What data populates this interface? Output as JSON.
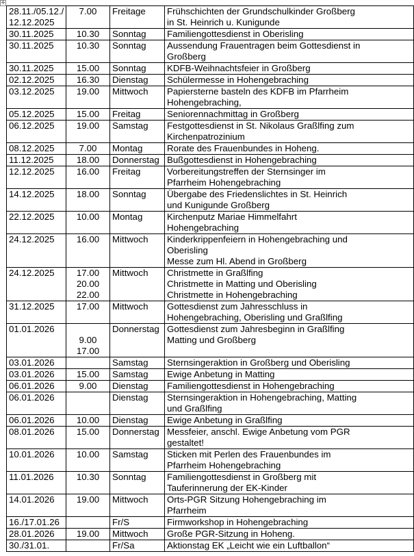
{
  "table_handle_icon": "move-handle-icon",
  "rows": [
    {
      "date": "28.11./05.12./\n12.12.2025",
      "time": "7.00",
      "day": "Freitage",
      "desc": "Frühschichten der Grundschulkinder Großberg\nin St. Heinrich u. Kunigunde"
    },
    {
      "date": "30.11.2025",
      "time": "10.30",
      "day": "Sonntag",
      "desc": "Familiengottesdienst in Oberisling"
    },
    {
      "date": "30.11.2025",
      "time": "10.30",
      "day": "Sonntag",
      "desc": "Aussendung Frauentragen beim Gottesdienst in\nGroßberg"
    },
    {
      "date": "30.11.2025",
      "time": "15.00",
      "day": "Sonntag",
      "desc": "KDFB-Weihnachtsfeier in Großberg"
    },
    {
      "date": "02.12.2025",
      "time": "16.30",
      "day": "Dienstag",
      "desc": "Schülermesse in Hohengebraching"
    },
    {
      "date": "03.12.2025",
      "time": "19.00",
      "day": "Mittwoch",
      "desc": "Papiersterne basteln des KDFB im Pfarrheim\nHohengebraching,"
    },
    {
      "date": "05.12.2025",
      "time": "15.00",
      "day": "Freitag",
      "desc": "Seniorennachmittag in Großberg"
    },
    {
      "date": "06.12.2025",
      "time": "19.00",
      "day": "Samstag",
      "desc": "Festgottesdienst in St. Nikolaus Graßlfing zum\nKirchenpatrozinium"
    },
    {
      "date": "08.12.2025",
      "time": "7.00",
      "day": "Montag",
      "desc": "Rorate des Frauenbundes in Hoheng."
    },
    {
      "date": "11.12.2025",
      "time": "18.00",
      "day": "Donnerstag",
      "desc": "Bußgottesdienst in Hohengebraching"
    },
    {
      "date": "12.12.2025",
      "time": "16.00",
      "day": "Freitag",
      "desc": "Vorbereitungstreffen der Sternsinger im\nPfarrheim Hohengebraching"
    },
    {
      "date": "14.12.2025",
      "time": "18.00",
      "day": "Sonntag",
      "desc": "Übergabe des Friedenslichtes in St. Heinrich\nund Kunigunde Großberg"
    },
    {
      "date": "22.12.2025",
      "time": "10.00",
      "day": "Montag",
      "desc": "Kirchenputz Mariae Himmelfahrt\nHohengebraching"
    },
    {
      "date": "24.12.2025",
      "time": "16.00",
      "day": "Mittwoch",
      "desc": "Kinderkrippenfeiern in Hohengebraching und\nOberisling\nMesse zum Hl. Abend in Großberg"
    },
    {
      "date": "24.12.2025",
      "time": "17.00\n20.00\n22.00",
      "day": "Mittwoch",
      "desc": "Christmette in Graßlfing\nChristmette in Matting und Oberisling\nChristmette in Hohengebraching"
    },
    {
      "date": "31.12.2025",
      "time": "17.00",
      "day": "Mittwoch",
      "desc": "Gottesdienst zum Jahresschluss in\nHohengebraching, Oberisling und Graßlfing"
    },
    {
      "date": "01.01.2026",
      "time": "\n9.00\n17.00",
      "day": "Donnerstag",
      "desc": "Gottesdienst zum Jahresbeginn in Graßlfing\nMatting und Großberg"
    },
    {
      "date": "03.01.2026",
      "time": "",
      "day": "Samstag",
      "desc": "Sternsingeraktion in Großberg und Oberisling"
    },
    {
      "date": "03.01.2026",
      "time": "15.00",
      "day": "Samstag",
      "desc": "Ewige Anbetung in Matting"
    },
    {
      "date": "06.01.2026",
      "time": "9.00",
      "day": "Dienstag",
      "desc": "Familiengottesdienst in Hohengebraching"
    },
    {
      "date": "06.01.2026",
      "time": "",
      "day": "Dienstag",
      "desc": "Sternsingeraktion in Hohengebraching, Matting\nund Graßlfing"
    },
    {
      "date": "06.01.2026",
      "time": "10.00",
      "day": "Dienstag",
      "desc": "Ewige Anbetung in Graßlfing"
    },
    {
      "date": "08.01.2026",
      "time": "15.00",
      "day": "Donnerstag",
      "desc": "Messfeier, anschl. Ewige Anbetung vom PGR\ngestaltet!"
    },
    {
      "date": "10.01.2026",
      "time": "10.00",
      "day": "Samstag",
      "desc": "Sticken mit Perlen des Frauenbundes im\nPfarrheim Hohengebraching"
    },
    {
      "date": "11.01.2026",
      "time": "10.30",
      "day": "Sonntag",
      "desc": "Familiengottesdienst in Großberg mit\nTauferinnerung der EK-Kinder"
    },
    {
      "date": "14.01.2026",
      "time": "19.00",
      "day": "Mittwoch",
      "desc": "Orts-PGR Sitzung Hohengebraching im\nPfarrheim"
    },
    {
      "date": "16./17.01.26",
      "time": "",
      "day": "Fr/S",
      "desc": "Firmworkshop in Hohengebraching"
    },
    {
      "date": "28.01.2026",
      "time": "19.00",
      "day": "Mittwoch",
      "desc": "Große PGR-Sitzung in Hoheng."
    },
    {
      "date": "30./31.01.",
      "time": "",
      "day": "Fr/Sa",
      "desc": "Aktionstag EK „Leicht wie ein Luftballon“"
    }
  ]
}
